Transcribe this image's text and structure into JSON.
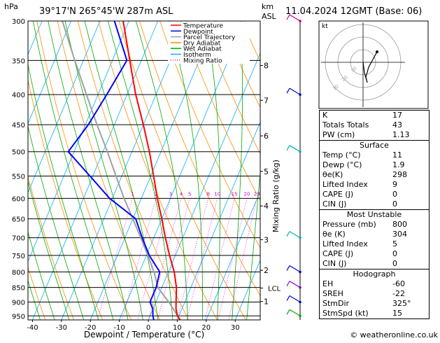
{
  "header": {
    "hpa_label": "hPa",
    "location": "39°17'N  265°45'W  287m  ASL",
    "km_label": "km",
    "asl_label": "ASL",
    "datetime": "11.04.2024  12GMT  (Base: 06)"
  },
  "chart_data": {
    "type": "skew-t",
    "pressure_ticks": [
      300,
      350,
      400,
      450,
      500,
      550,
      600,
      650,
      700,
      750,
      800,
      850,
      900,
      950
    ],
    "temp_ticks": [
      -40,
      -30,
      -20,
      -10,
      0,
      10,
      20,
      30
    ],
    "xlabel": "Dewpoint / Temperature (°C)",
    "ylabel_right": "Mixing Ratio (g/kg)",
    "km_ticks": [
      {
        "km": "8",
        "p": 357
      },
      {
        "km": "7",
        "p": 409
      },
      {
        "km": "6",
        "p": 470
      },
      {
        "km": "5",
        "p": 540
      },
      {
        "km": "4",
        "p": 618
      },
      {
        "km": "3",
        "p": 705
      },
      {
        "km": "2",
        "p": 795
      },
      {
        "km": "1",
        "p": 898
      }
    ],
    "lcl": {
      "label": "LCL",
      "p": 852
    },
    "mixing_ratio_labels": [
      "1",
      "2",
      "3",
      "4",
      "5",
      "8",
      "10",
      "15",
      "20",
      "25"
    ],
    "mixing_ratio_values": [
      1,
      2,
      3,
      4,
      5,
      8,
      10,
      15,
      20,
      25
    ],
    "temperature": [
      [
        965,
        11
      ],
      [
        950,
        9.5
      ],
      [
        925,
        8
      ],
      [
        900,
        7
      ],
      [
        850,
        5
      ],
      [
        800,
        2
      ],
      [
        750,
        -2
      ],
      [
        700,
        -6
      ],
      [
        650,
        -10
      ],
      [
        600,
        -14.5
      ],
      [
        550,
        -19
      ],
      [
        500,
        -24
      ],
      [
        450,
        -30
      ],
      [
        400,
        -37
      ],
      [
        350,
        -44
      ],
      [
        300,
        -52
      ]
    ],
    "dewpoint": [
      [
        965,
        1.9
      ],
      [
        950,
        1
      ],
      [
        925,
        0
      ],
      [
        900,
        -2
      ],
      [
        850,
        -2
      ],
      [
        800,
        -3
      ],
      [
        750,
        -9
      ],
      [
        700,
        -14
      ],
      [
        650,
        -19
      ],
      [
        600,
        -31
      ],
      [
        550,
        -41
      ],
      [
        500,
        -52
      ],
      [
        450,
        -49
      ],
      [
        400,
        -47
      ],
      [
        350,
        -45
      ],
      [
        300,
        -55
      ]
    ],
    "parcel": [
      [
        965,
        11
      ],
      [
        900,
        4.5
      ],
      [
        852,
        -1.2
      ],
      [
        800,
        -5
      ],
      [
        750,
        -9.5
      ],
      [
        700,
        -14.5
      ],
      [
        650,
        -20
      ],
      [
        600,
        -26
      ],
      [
        550,
        -32
      ],
      [
        500,
        -38.5
      ],
      [
        450,
        -46
      ],
      [
        400,
        -54
      ],
      [
        350,
        -63
      ],
      [
        300,
        -73
      ]
    ],
    "legend": [
      {
        "name": "Temperature",
        "color": "#ff0000"
      },
      {
        "name": "Dewpoint",
        "color": "#0000ff"
      },
      {
        "name": "Parcel Trajectory",
        "color": "#a0a0a0"
      },
      {
        "name": "Dry Adiabat",
        "color": "#ff8c00"
      },
      {
        "name": "Wet Adiabat",
        "color": "#00aa00"
      },
      {
        "name": "Isotherm",
        "color": "#00b0ff"
      },
      {
        "name": "Mixing Ratio",
        "color": "#ff00ff"
      }
    ],
    "hodograph": {
      "label": "kt",
      "ring_labels": [
        "10",
        "20",
        "30"
      ]
    }
  },
  "indices": {
    "block1": [
      {
        "label": "K",
        "value": "17"
      },
      {
        "label": "Totals Totals",
        "value": "43"
      },
      {
        "label": "PW (cm)",
        "value": "1.13"
      }
    ],
    "surface_title": "Surface",
    "surface": [
      {
        "label": "Temp (°C)",
        "value": "11"
      },
      {
        "label": "Dewp (°C)",
        "value": "1.9"
      },
      {
        "label": "θe(K)",
        "value": "298"
      },
      {
        "label": "Lifted Index",
        "value": "9"
      },
      {
        "label": "CAPE (J)",
        "value": "0"
      },
      {
        "label": "CIN (J)",
        "value": "0"
      }
    ],
    "mu_title": "Most Unstable",
    "most_unstable": [
      {
        "label": "Pressure (mb)",
        "value": "800"
      },
      {
        "label": "θe (K)",
        "value": "304"
      },
      {
        "label": "Lifted Index",
        "value": "5"
      },
      {
        "label": "CAPE (J)",
        "value": "0"
      },
      {
        "label": "CIN (J)",
        "value": "0"
      }
    ],
    "hodo_title": "Hodograph",
    "hodograph": [
      {
        "label": "EH",
        "value": "-60"
      },
      {
        "label": "SREH",
        "value": "-22"
      },
      {
        "label": "StmDir",
        "value": "325°"
      },
      {
        "label": "StmSpd (kt)",
        "value": "15"
      }
    ]
  },
  "footer": {
    "copyright": "© weatheronline.co.uk"
  }
}
